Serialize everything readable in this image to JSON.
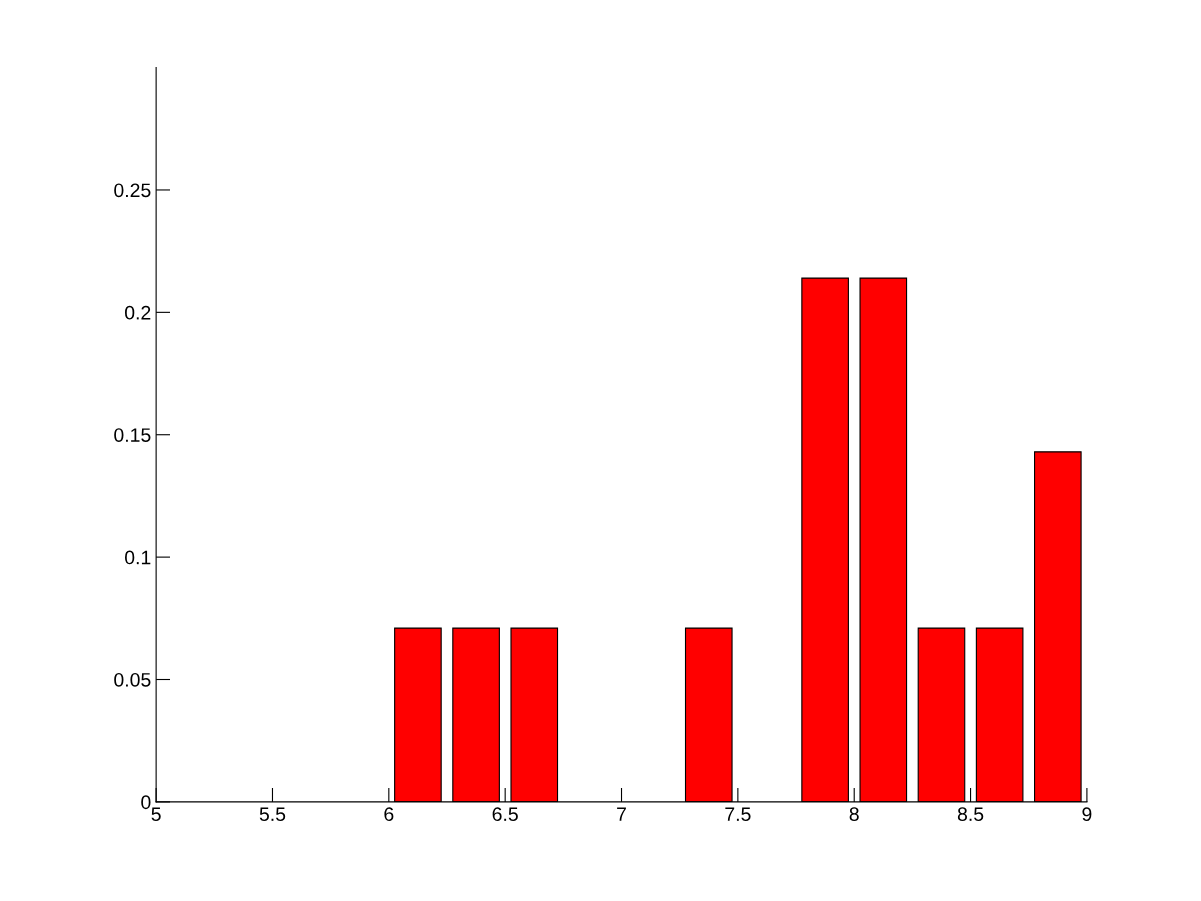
{
  "chart_data": {
    "type": "bar",
    "x": [
      6.125,
      6.375,
      6.625,
      7.375,
      7.875,
      8.125,
      8.375,
      8.625,
      8.875
    ],
    "values": [
      0.071,
      0.071,
      0.071,
      0.071,
      0.214,
      0.214,
      0.071,
      0.071,
      0.143
    ],
    "color": "#ff0000",
    "xlim": [
      5,
      9
    ],
    "xticks": [
      5,
      5.5,
      6,
      6.5,
      7,
      7.5,
      8,
      8.5,
      9
    ],
    "ylim": [
      0,
      0.3
    ],
    "yticks": [
      0,
      0.05,
      0.1,
      0.15,
      0.2,
      0.25
    ],
    "grid": false,
    "legend": false
  }
}
